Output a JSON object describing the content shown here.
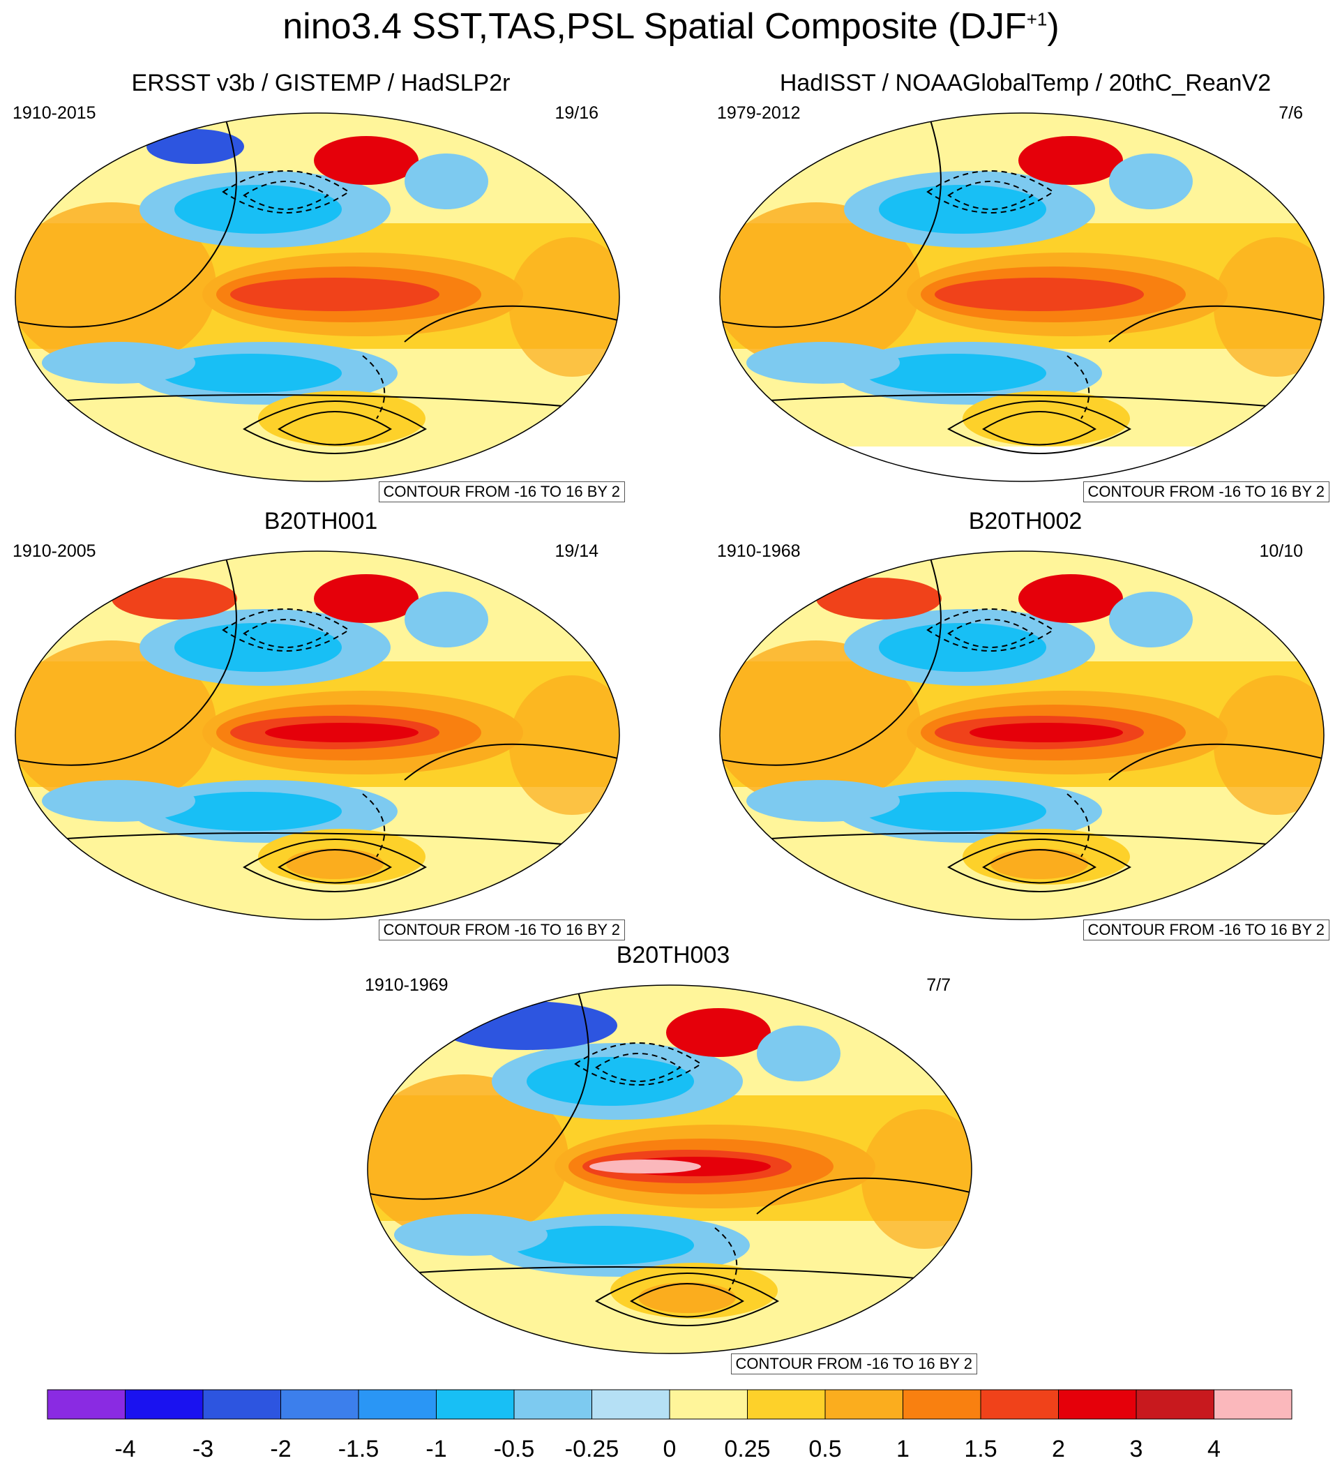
{
  "title": "nino3.4 SST,TAS,PSL Spatial Composite (DJF",
  "title_sup": "+1",
  "title_close": ")",
  "panels": [
    {
      "title": "ERSST v3b / GISTEMP / HadSLP2r",
      "period": "1910-2015",
      "counts": "19/16",
      "contour": "CONTOUR FROM -16 TO 16 BY 2"
    },
    {
      "title": "HadISST / NOAAGlobalTemp / 20thC_ReanV2",
      "period": "1979-2012",
      "counts": "7/6",
      "contour": "CONTOUR FROM -16 TO 16 BY 2"
    },
    {
      "title": "B20TH001",
      "period": "1910-2005",
      "counts": "19/14",
      "contour": "CONTOUR FROM -16 TO 16 BY 2"
    },
    {
      "title": "B20TH002",
      "period": "1910-1968",
      "counts": "10/10",
      "contour": "CONTOUR FROM -16 TO 16 BY 2"
    },
    {
      "title": "B20TH003",
      "period": "1910-1969",
      "counts": "7/7",
      "contour": "CONTOUR FROM -16 TO 16 BY 2"
    }
  ],
  "chart_data": {
    "type": "heatmap",
    "title": "nino3.4 SST,TAS,PSL Spatial Composite (DJF+1)",
    "colorbar": {
      "levels": [
        "-4",
        "-3",
        "-2",
        "-1.5",
        "-1",
        "-0.5",
        "-0.25",
        "0",
        "0.25",
        "0.5",
        "1",
        "1.5",
        "2",
        "3",
        "4"
      ],
      "colors": [
        "#8a2be2",
        "#1a12f0",
        "#2d55e0",
        "#3c7fec",
        "#2a96f5",
        "#18bff5",
        "#7dcaf0",
        "#b5e0f5",
        "#fff59a",
        "#fdd12a",
        "#fbad1e",
        "#f98010",
        "#f0421a",
        "#e5000a",
        "#c8191e",
        "#fbb8bc"
      ]
    },
    "contours": "PSL: -16 to 16 by 2 (solid positive, dashed negative)"
  }
}
